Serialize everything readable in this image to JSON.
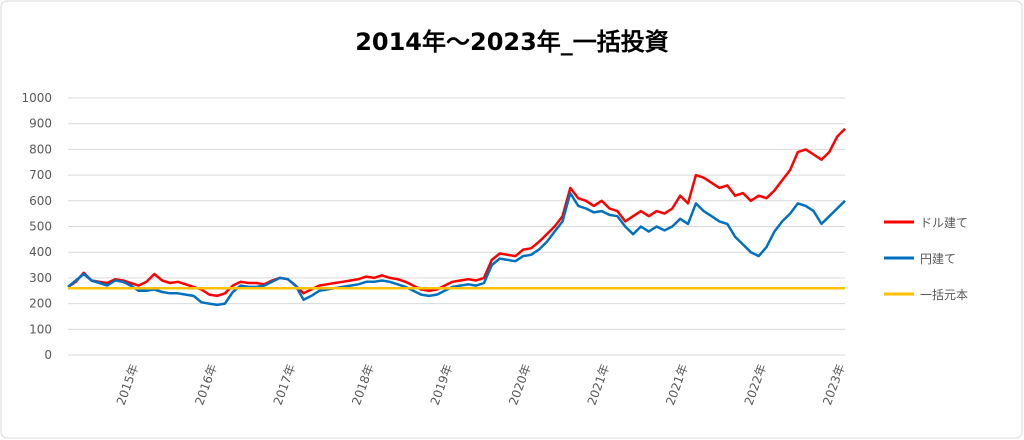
{
  "chart_data": {
    "type": "line",
    "title": "2014年～2023年_一括投資",
    "categories": [
      null,
      null,
      null,
      null,
      null,
      null,
      null,
      null,
      null,
      "2015年",
      null,
      null,
      null,
      null,
      null,
      null,
      null,
      null,
      null,
      "2016年",
      null,
      null,
      null,
      null,
      null,
      null,
      null,
      null,
      null,
      "2017年",
      null,
      null,
      null,
      null,
      null,
      null,
      null,
      null,
      null,
      "2018年",
      null,
      null,
      null,
      null,
      null,
      null,
      null,
      null,
      null,
      "2019年",
      null,
      null,
      null,
      null,
      null,
      null,
      null,
      null,
      null,
      "2020年",
      null,
      null,
      null,
      null,
      null,
      null,
      null,
      null,
      null,
      "2021年",
      null,
      null,
      null,
      null,
      null,
      null,
      null,
      null,
      null,
      "2021年",
      null,
      null,
      null,
      null,
      null,
      null,
      null,
      null,
      null,
      "2022年",
      null,
      null,
      null,
      null,
      null,
      null,
      null,
      null,
      null,
      "2023年"
    ],
    "series": [
      {
        "name": "ドル建て",
        "color": "#ff0000",
        "values": [
          265,
          285,
          320,
          290,
          285,
          280,
          295,
          290,
          280,
          270,
          285,
          315,
          290,
          280,
          285,
          275,
          265,
          255,
          235,
          230,
          240,
          270,
          285,
          280,
          280,
          275,
          290,
          300,
          295,
          270,
          240,
          255,
          270,
          275,
          280,
          285,
          290,
          295,
          305,
          300,
          310,
          300,
          295,
          285,
          270,
          255,
          250,
          255,
          270,
          285,
          290,
          295,
          290,
          300,
          370,
          395,
          390,
          385,
          410,
          415,
          440,
          470,
          500,
          540,
          650,
          610,
          600,
          580,
          600,
          570,
          560,
          520,
          540,
          560,
          540,
          560,
          550,
          570,
          620,
          590,
          700,
          690,
          670,
          650,
          660,
          620,
          630,
          600,
          620,
          610,
          640,
          680,
          720,
          790,
          800,
          780,
          760,
          790,
          850,
          880
        ]
      },
      {
        "name": "円建て",
        "color": "#0070c0",
        "values": [
          265,
          290,
          315,
          290,
          280,
          270,
          290,
          285,
          270,
          250,
          250,
          255,
          245,
          240,
          240,
          235,
          230,
          205,
          200,
          195,
          200,
          245,
          270,
          265,
          265,
          270,
          285,
          300,
          295,
          270,
          215,
          230,
          250,
          255,
          260,
          265,
          270,
          275,
          285,
          285,
          290,
          285,
          275,
          265,
          250,
          235,
          230,
          235,
          250,
          265,
          270,
          275,
          270,
          280,
          350,
          375,
          370,
          365,
          385,
          390,
          410,
          440,
          480,
          520,
          630,
          580,
          570,
          555,
          560,
          545,
          540,
          500,
          470,
          500,
          480,
          500,
          485,
          500,
          530,
          510,
          590,
          560,
          540,
          520,
          510,
          460,
          430,
          400,
          385,
          420,
          480,
          520,
          550,
          590,
          580,
          560,
          510,
          540,
          570,
          600
        ]
      },
      {
        "name": "一括元本",
        "color": "#ffc000",
        "values": [
          260,
          260,
          260,
          260,
          260,
          260,
          260,
          260,
          260,
          260,
          260,
          260,
          260,
          260,
          260,
          260,
          260,
          260,
          260,
          260,
          260,
          260,
          260,
          260,
          260,
          260,
          260,
          260,
          260,
          260,
          260,
          260,
          260,
          260,
          260,
          260,
          260,
          260,
          260,
          260,
          260,
          260,
          260,
          260,
          260,
          260,
          260,
          260,
          260,
          260,
          260,
          260,
          260,
          260,
          260,
          260,
          260,
          260,
          260,
          260,
          260,
          260,
          260,
          260,
          260,
          260,
          260,
          260,
          260,
          260,
          260,
          260,
          260,
          260,
          260,
          260,
          260,
          260,
          260,
          260,
          260,
          260,
          260,
          260,
          260,
          260,
          260,
          260,
          260,
          260,
          260,
          260,
          260,
          260,
          260,
          260,
          260,
          260,
          260,
          260
        ]
      }
    ],
    "ylim": [
      0,
      1000
    ],
    "yticks": [
      0,
      100,
      200,
      300,
      400,
      500,
      600,
      700,
      800,
      900,
      1000
    ],
    "grid": true,
    "legend": "right"
  }
}
